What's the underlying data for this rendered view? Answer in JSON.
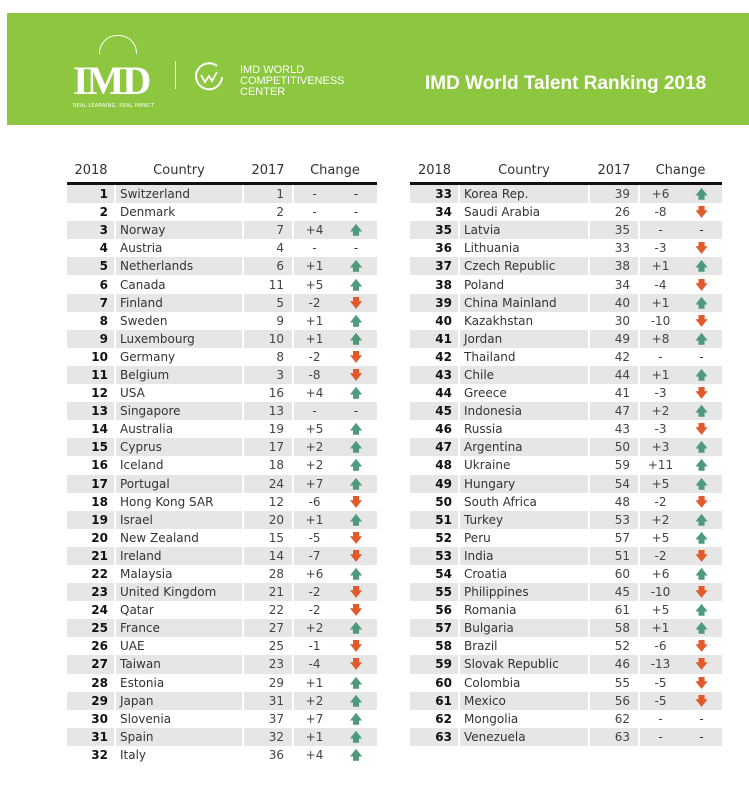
{
  "banner": {
    "logo_text": "IMD",
    "logo_tagline": "REAL LEARNING. REAL IMPACT",
    "center_name": [
      "IMD WORLD",
      "COMPETITIVENESS",
      "CENTER"
    ],
    "title": "IMD World Talent Ranking 2018",
    "color": "#8dc63f"
  },
  "headers": {
    "rank": "2018",
    "country": "Country",
    "prev": "2017",
    "change": "Change"
  },
  "colors": {
    "up": "#4e9a7a",
    "down": "#e05a2b"
  },
  "rows": [
    {
      "rank": "1",
      "country": "Switzerland",
      "prev": "1",
      "change": "-",
      "dir": "none"
    },
    {
      "rank": "2",
      "country": "Denmark",
      "prev": "2",
      "change": "-",
      "dir": "none"
    },
    {
      "rank": "3",
      "country": "Norway",
      "prev": "7",
      "change": "+4",
      "dir": "up"
    },
    {
      "rank": "4",
      "country": "Austria",
      "prev": "4",
      "change": "-",
      "dir": "none"
    },
    {
      "rank": "5",
      "country": "Netherlands",
      "prev": "6",
      "change": "+1",
      "dir": "up"
    },
    {
      "rank": "6",
      "country": "Canada",
      "prev": "11",
      "change": "+5",
      "dir": "up"
    },
    {
      "rank": "7",
      "country": "Finland",
      "prev": "5",
      "change": "-2",
      "dir": "down"
    },
    {
      "rank": "8",
      "country": "Sweden",
      "prev": "9",
      "change": "+1",
      "dir": "up"
    },
    {
      "rank": "9",
      "country": "Luxembourg",
      "prev": "10",
      "change": "+1",
      "dir": "up"
    },
    {
      "rank": "10",
      "country": "Germany",
      "prev": "8",
      "change": "-2",
      "dir": "down"
    },
    {
      "rank": "11",
      "country": "Belgium",
      "prev": "3",
      "change": "-8",
      "dir": "down"
    },
    {
      "rank": "12",
      "country": "USA",
      "prev": "16",
      "change": "+4",
      "dir": "up"
    },
    {
      "rank": "13",
      "country": "Singapore",
      "prev": "13",
      "change": "-",
      "dir": "none"
    },
    {
      "rank": "14",
      "country": "Australia",
      "prev": "19",
      "change": "+5",
      "dir": "up"
    },
    {
      "rank": "15",
      "country": "Cyprus",
      "prev": "17",
      "change": "+2",
      "dir": "up"
    },
    {
      "rank": "16",
      "country": "Iceland",
      "prev": "18",
      "change": "+2",
      "dir": "up"
    },
    {
      "rank": "17",
      "country": "Portugal",
      "prev": "24",
      "change": "+7",
      "dir": "up"
    },
    {
      "rank": "18",
      "country": "Hong Kong SAR",
      "prev": "12",
      "change": "-6",
      "dir": "down"
    },
    {
      "rank": "19",
      "country": "Israel",
      "prev": "20",
      "change": "+1",
      "dir": "up"
    },
    {
      "rank": "20",
      "country": "New Zealand",
      "prev": "15",
      "change": "-5",
      "dir": "down"
    },
    {
      "rank": "21",
      "country": "Ireland",
      "prev": "14",
      "change": "-7",
      "dir": "down"
    },
    {
      "rank": "22",
      "country": "Malaysia",
      "prev": "28",
      "change": "+6",
      "dir": "up"
    },
    {
      "rank": "23",
      "country": "United Kingdom",
      "prev": "21",
      "change": "-2",
      "dir": "down"
    },
    {
      "rank": "24",
      "country": "Qatar",
      "prev": "22",
      "change": "-2",
      "dir": "down"
    },
    {
      "rank": "25",
      "country": "France",
      "prev": "27",
      "change": "+2",
      "dir": "up"
    },
    {
      "rank": "26",
      "country": "UAE",
      "prev": "25",
      "change": "-1",
      "dir": "down"
    },
    {
      "rank": "27",
      "country": "Taiwan",
      "prev": "23",
      "change": "-4",
      "dir": "down"
    },
    {
      "rank": "28",
      "country": "Estonia",
      "prev": "29",
      "change": "+1",
      "dir": "up"
    },
    {
      "rank": "29",
      "country": "Japan",
      "prev": "31",
      "change": "+2",
      "dir": "up"
    },
    {
      "rank": "30",
      "country": "Slovenia",
      "prev": "37",
      "change": "+7",
      "dir": "up"
    },
    {
      "rank": "31",
      "country": "Spain",
      "prev": "32",
      "change": "+1",
      "dir": "up"
    },
    {
      "rank": "32",
      "country": "Italy",
      "prev": "36",
      "change": "+4",
      "dir": "up"
    },
    {
      "rank": "33",
      "country": "Korea Rep.",
      "prev": "39",
      "change": "+6",
      "dir": "up"
    },
    {
      "rank": "34",
      "country": "Saudi Arabia",
      "prev": "26",
      "change": "-8",
      "dir": "down"
    },
    {
      "rank": "35",
      "country": "Latvia",
      "prev": "35",
      "change": "-",
      "dir": "none"
    },
    {
      "rank": "36",
      "country": "Lithuania",
      "prev": "33",
      "change": "-3",
      "dir": "down"
    },
    {
      "rank": "37",
      "country": "Czech Republic",
      "prev": "38",
      "change": "+1",
      "dir": "up"
    },
    {
      "rank": "38",
      "country": "Poland",
      "prev": "34",
      "change": "-4",
      "dir": "down"
    },
    {
      "rank": "39",
      "country": "China Mainland",
      "prev": "40",
      "change": "+1",
      "dir": "up"
    },
    {
      "rank": "40",
      "country": "Kazakhstan",
      "prev": "30",
      "change": "-10",
      "dir": "down"
    },
    {
      "rank": "41",
      "country": "Jordan",
      "prev": "49",
      "change": "+8",
      "dir": "up"
    },
    {
      "rank": "42",
      "country": "Thailand",
      "prev": "42",
      "change": "-",
      "dir": "none"
    },
    {
      "rank": "43",
      "country": "Chile",
      "prev": "44",
      "change": "+1",
      "dir": "up"
    },
    {
      "rank": "44",
      "country": "Greece",
      "prev": "41",
      "change": "-3",
      "dir": "down"
    },
    {
      "rank": "45",
      "country": "Indonesia",
      "prev": "47",
      "change": "+2",
      "dir": "up"
    },
    {
      "rank": "46",
      "country": "Russia",
      "prev": "43",
      "change": "-3",
      "dir": "down"
    },
    {
      "rank": "47",
      "country": "Argentina",
      "prev": "50",
      "change": "+3",
      "dir": "up"
    },
    {
      "rank": "48",
      "country": "Ukraine",
      "prev": "59",
      "change": "+11",
      "dir": "up"
    },
    {
      "rank": "49",
      "country": "Hungary",
      "prev": "54",
      "change": "+5",
      "dir": "up"
    },
    {
      "rank": "50",
      "country": "South Africa",
      "prev": "48",
      "change": "-2",
      "dir": "down"
    },
    {
      "rank": "51",
      "country": "Turkey",
      "prev": "53",
      "change": "+2",
      "dir": "up"
    },
    {
      "rank": "52",
      "country": "Peru",
      "prev": "57",
      "change": "+5",
      "dir": "up"
    },
    {
      "rank": "53",
      "country": "India",
      "prev": "51",
      "change": "-2",
      "dir": "down"
    },
    {
      "rank": "54",
      "country": "Croatia",
      "prev": "60",
      "change": "+6",
      "dir": "up"
    },
    {
      "rank": "55",
      "country": "Philippines",
      "prev": "45",
      "change": "-10",
      "dir": "down"
    },
    {
      "rank": "56",
      "country": "Romania",
      "prev": "61",
      "change": "+5",
      "dir": "up"
    },
    {
      "rank": "57",
      "country": "Bulgaria",
      "prev": "58",
      "change": "+1",
      "dir": "up"
    },
    {
      "rank": "58",
      "country": "Brazil",
      "prev": "52",
      "change": "-6",
      "dir": "down"
    },
    {
      "rank": "59",
      "country": "Slovak Republic",
      "prev": "46",
      "change": "-13",
      "dir": "down"
    },
    {
      "rank": "60",
      "country": "Colombia",
      "prev": "55",
      "change": "-5",
      "dir": "down"
    },
    {
      "rank": "61",
      "country": "Mexico",
      "prev": "56",
      "change": "-5",
      "dir": "down"
    },
    {
      "rank": "62",
      "country": "Mongolia",
      "prev": "62",
      "change": "-",
      "dir": "none"
    },
    {
      "rank": "63",
      "country": "Venezuela",
      "prev": "63",
      "change": "-",
      "dir": "none"
    }
  ]
}
